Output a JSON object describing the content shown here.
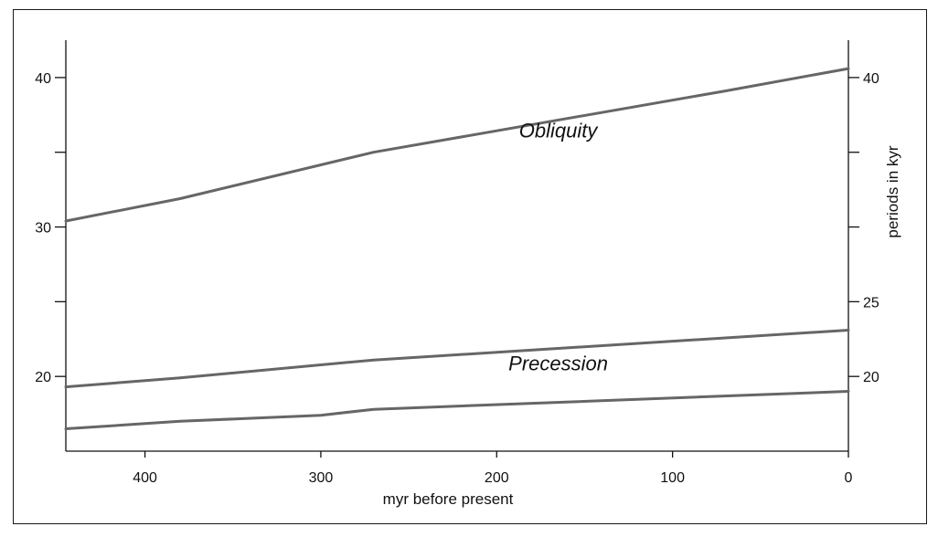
{
  "chart_data": {
    "type": "line",
    "xlabel": "myr before present",
    "ylabel_right": "periods in kyr",
    "xlim": [
      445,
      0
    ],
    "ylim": [
      15,
      42.5
    ],
    "x_ticks": [
      400,
      300,
      200,
      100,
      0
    ],
    "y_left_ticks": [
      40,
      35,
      30,
      25,
      20
    ],
    "y_left_tick_labels": [
      "40",
      "",
      "30",
      "",
      "20"
    ],
    "y_right_ticks": [
      40,
      35,
      30,
      25,
      20
    ],
    "y_right_tick_labels": [
      "40",
      "",
      "",
      "25",
      "20"
    ],
    "grid": false,
    "series": [
      {
        "name": "Obliquity",
        "color": "#666666",
        "x": [
          445,
          380,
          270,
          70,
          0
        ],
        "y": [
          30.4,
          31.9,
          35.0,
          39.1,
          40.6
        ]
      },
      {
        "name": "Precession",
        "color": "#666666",
        "x": [
          445,
          380,
          270,
          0
        ],
        "y": [
          19.3,
          19.9,
          21.1,
          23.1
        ]
      },
      {
        "name": "",
        "color": "#666666",
        "x": [
          445,
          380,
          300,
          270,
          0
        ],
        "y": [
          16.5,
          17.0,
          17.4,
          17.8,
          19.0
        ]
      }
    ],
    "annotations": [
      {
        "text": "Obliquity",
        "x": 165,
        "y": 36.0
      },
      {
        "text": "Precession",
        "x": 165,
        "y": 20.4
      }
    ]
  }
}
